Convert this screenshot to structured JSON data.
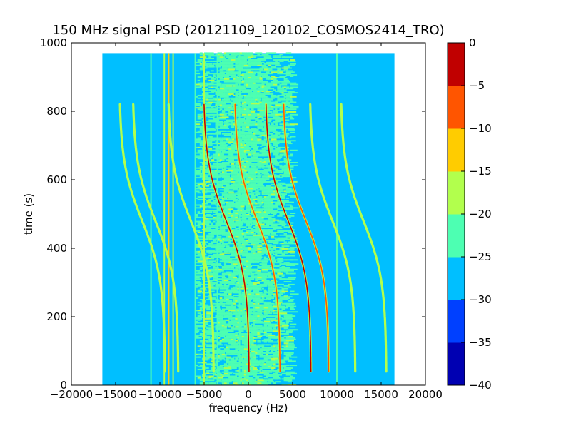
{
  "chart_data": {
    "type": "heatmap",
    "title": "150 MHz signal PSD (20121109_120102_COSMOS2414_TRO)",
    "xlabel": "frequency (Hz)",
    "ylabel": "time (s)",
    "xlim": [
      -20000,
      20000
    ],
    "ylim": [
      0,
      1000
    ],
    "x_ticks": [
      -20000,
      -15000,
      -10000,
      -5000,
      0,
      5000,
      10000,
      15000,
      20000
    ],
    "x_tick_labels": [
      "−20000",
      "−15000",
      "−10000",
      "−5000",
      "0",
      "5000",
      "10000",
      "15000",
      "20000"
    ],
    "y_ticks": [
      0,
      200,
      400,
      600,
      800,
      1000
    ],
    "y_tick_labels": [
      "0",
      "200",
      "400",
      "600",
      "800",
      "1000"
    ],
    "data_extent": {
      "x": [
        -16500,
        16500
      ],
      "y": [
        0,
        970
      ]
    },
    "background_level": -27.5,
    "noise_band": {
      "x": [
        -6000,
        5000
      ],
      "level": -22.5
    },
    "vertical_lines": [
      {
        "x": -11000,
        "level": -22
      },
      {
        "x": -9500,
        "level": -18
      },
      {
        "x": -9000,
        "level": -15
      },
      {
        "x": -8500,
        "level": -19
      },
      {
        "x": -6000,
        "level": -21
      },
      {
        "x": -5000,
        "level": -20
      },
      {
        "x": -3500,
        "level": -22
      },
      {
        "x": -1000,
        "level": -23
      },
      {
        "x": 10000,
        "level": -22
      }
    ],
    "traces": [
      {
        "offset_hz": -12000,
        "level": -17
      },
      {
        "offset_hz": -10500,
        "level": -18
      },
      {
        "offset_hz": -6500,
        "level": -17
      },
      {
        "offset_hz": -2500,
        "level": -5
      },
      {
        "offset_hz": 1000,
        "level": -8
      },
      {
        "offset_hz": 4500,
        "level": -4
      },
      {
        "offset_hz": 6500,
        "level": -8
      },
      {
        "offset_hz": 9500,
        "level": -17
      },
      {
        "offset_hz": 13000,
        "level": -20
      }
    ],
    "trace_shape": {
      "center_time": 480,
      "amplitude_hz": 2600,
      "time_scale": 170,
      "time_range": [
        40,
        820
      ]
    },
    "colorbar": {
      "levels": [
        -40,
        -35,
        -30,
        -25,
        -20,
        -15,
        -10,
        -5,
        0
      ],
      "tick_labels": [
        "−40",
        "−35",
        "−30",
        "−25",
        "−20",
        "−15",
        "−10",
        "−5",
        "0"
      ],
      "colors": [
        "#0000b2",
        "#0040ff",
        "#00bfff",
        "#4dffb2",
        "#b2ff4d",
        "#ffcc00",
        "#ff5500",
        "#c00000"
      ]
    }
  }
}
